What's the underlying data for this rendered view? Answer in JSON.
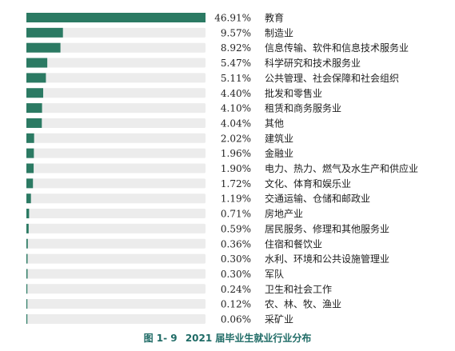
{
  "chart_data": {
    "type": "bar",
    "orientation": "horizontal",
    "categories": [
      "教育",
      "制造业",
      "信息传输、软件和信息技术服务业",
      "科学研究和技术服务业",
      "公共管理、社会保障和社会组织",
      "批发和零售业",
      "租赁和商务服务业",
      "其他",
      "建筑业",
      "金融业",
      "电力、热力、燃气及水生产和供应业",
      "文化、体育和娱乐业",
      "交通运输、仓储和邮政业",
      "房地产业",
      "居民服务、修理和其他服务业",
      "住宿和餐饮业",
      "水利、环境和公共设施管理业",
      "军队",
      "卫生和社会工作",
      "农、林、牧、渔业",
      "采矿业"
    ],
    "values": [
      46.91,
      9.57,
      8.92,
      5.47,
      5.11,
      4.4,
      4.1,
      4.04,
      2.02,
      1.96,
      1.9,
      1.72,
      1.19,
      0.71,
      0.59,
      0.36,
      0.3,
      0.3,
      0.24,
      0.12,
      0.06
    ],
    "value_labels": [
      "46.91%",
      "9.57%",
      "8.92%",
      "5.47%",
      "5.11%",
      "4.40%",
      "4.10%",
      "4.04%",
      "2.02%",
      "1.96%",
      "1.90%",
      "1.72%",
      "1.19%",
      "0.71%",
      "0.59%",
      "0.36%",
      "0.30%",
      "0.30%",
      "0.24%",
      "0.12%",
      "0.06%"
    ],
    "xlim": [
      0,
      46.91
    ],
    "colors": {
      "bar": "#2b7a63",
      "track": "#ececec",
      "caption": "#1f6b66"
    }
  },
  "caption": {
    "figure_no": "图 1- 9",
    "title": "2021 届毕业生就业行业分布"
  }
}
